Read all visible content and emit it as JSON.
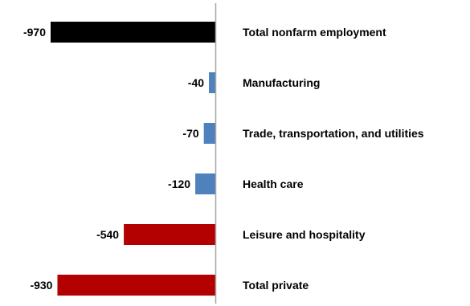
{
  "chart_data": {
    "type": "bar",
    "orientation": "horizontal",
    "categories": [
      "Total nonfarm employment",
      "Manufacturing",
      "Trade, transportation, and utilities",
      "Health care",
      "Leisure and hospitality",
      "Total private"
    ],
    "values": [
      -970,
      -40,
      -70,
      -120,
      -540,
      -930
    ],
    "value_labels": [
      "-970",
      "-40",
      "-70",
      "-120",
      "-540",
      "-930"
    ],
    "colors": [
      "#000000",
      "#4f81bd",
      "#4f81bd",
      "#4f81bd",
      "#b30000",
      "#b30000"
    ],
    "axis_color": "#a6a6a6",
    "xlim": [
      -970,
      0
    ],
    "grid": false,
    "legend": "none",
    "title": "",
    "xlabel": "",
    "ylabel": ""
  }
}
